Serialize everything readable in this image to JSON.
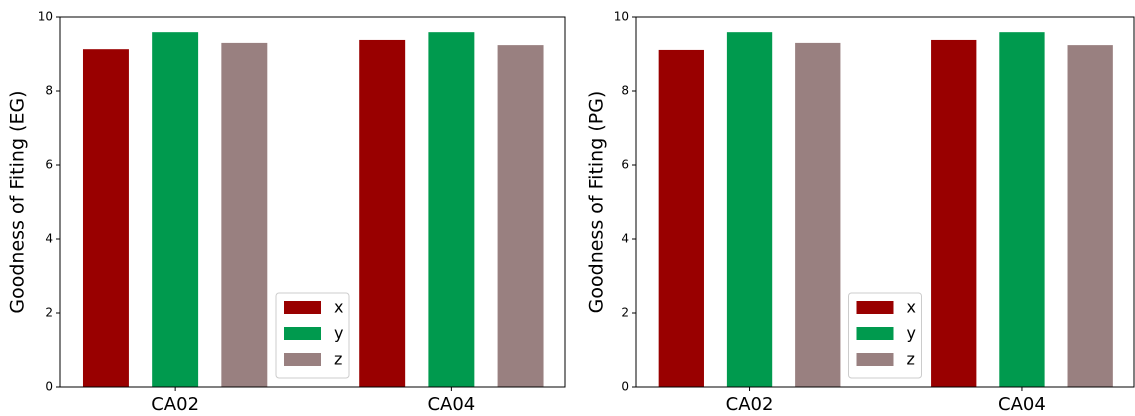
{
  "chart_data": [
    {
      "type": "bar",
      "ylabel": "Goodness of Fiting (EG)",
      "categories": [
        "CA02",
        "CA04"
      ],
      "series": [
        {
          "name": "x",
          "color": "#990000",
          "values": [
            9.13,
            9.38
          ]
        },
        {
          "name": "y",
          "color": "#009a4e",
          "values": [
            9.59,
            9.59
          ]
        },
        {
          "name": "z",
          "color": "#998080",
          "values": [
            9.3,
            9.24
          ]
        }
      ],
      "ylim": [
        0,
        10
      ],
      "yticks": [
        0,
        2,
        4,
        6,
        8,
        10
      ],
      "legend": "lower center"
    },
    {
      "type": "bar",
      "ylabel": "Goodness of Fiting (PG)",
      "categories": [
        "CA02",
        "CA04"
      ],
      "series": [
        {
          "name": "x",
          "color": "#990000",
          "values": [
            9.11,
            9.38
          ]
        },
        {
          "name": "y",
          "color": "#009a4e",
          "values": [
            9.59,
            9.59
          ]
        },
        {
          "name": "z",
          "color": "#998080",
          "values": [
            9.3,
            9.24
          ]
        }
      ],
      "ylim": [
        0,
        10
      ],
      "yticks": [
        0,
        2,
        4,
        6,
        8,
        10
      ],
      "legend": "lower center"
    }
  ]
}
